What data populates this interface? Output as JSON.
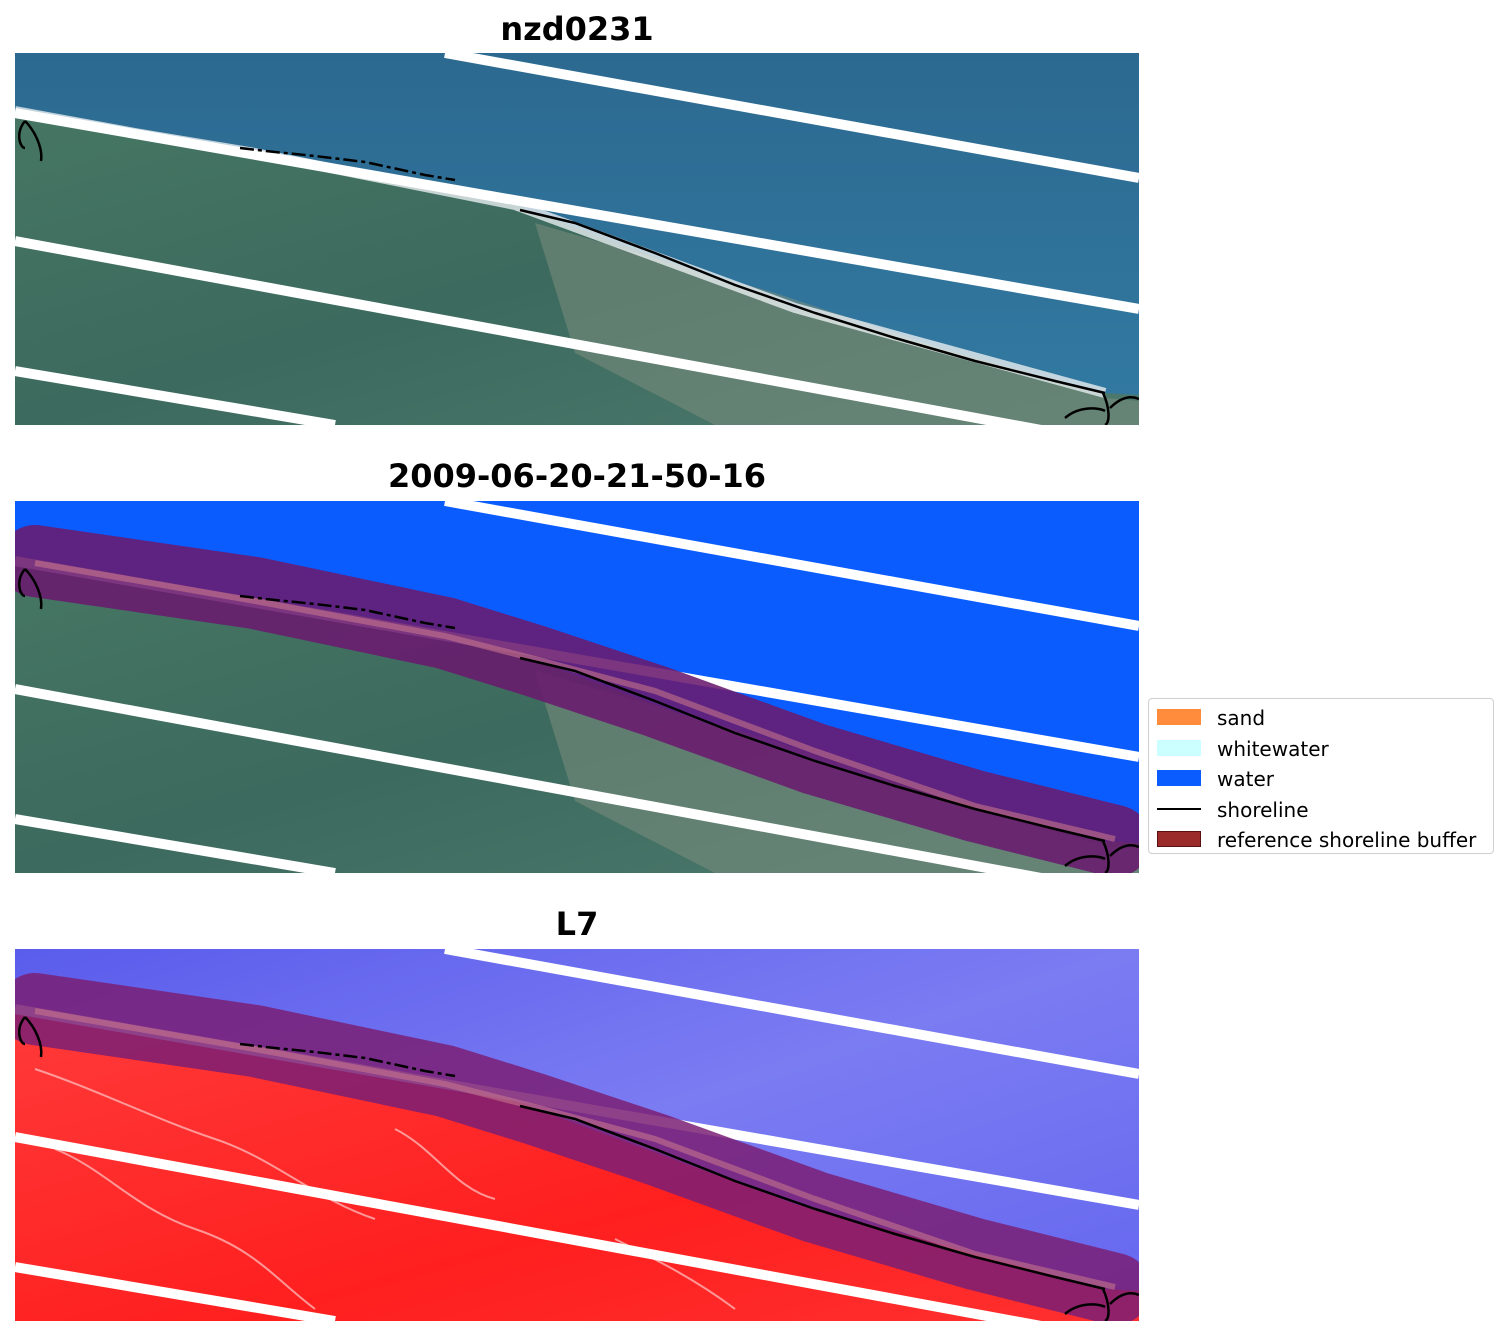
{
  "panels": [
    {
      "title": "nzd0231",
      "view": "rgb"
    },
    {
      "title": "2009-06-20-21-50-16",
      "view": "classified"
    },
    {
      "title": "L7",
      "view": "index"
    }
  ],
  "legend": {
    "items": [
      {
        "label": "sand",
        "color": "#ff8c3c",
        "kind": "patch"
      },
      {
        "label": "whitewater",
        "color": "#ccffff",
        "kind": "patch"
      },
      {
        "label": "water",
        "color": "#0a5cff",
        "kind": "patch"
      },
      {
        "label": "shoreline",
        "color": "#000000",
        "kind": "line"
      },
      {
        "label": "reference shoreline buffer",
        "color": "#9b2a2a",
        "kind": "patch-edge"
      }
    ]
  },
  "colors": {
    "ocean_rgb": "#2e6f95",
    "land_rgb": "#3f6e63",
    "water_class": "#0a5cff",
    "buffer": "#6a1a6e",
    "index_water": "#6a6cf0",
    "index_land": "#ff2a2a"
  }
}
